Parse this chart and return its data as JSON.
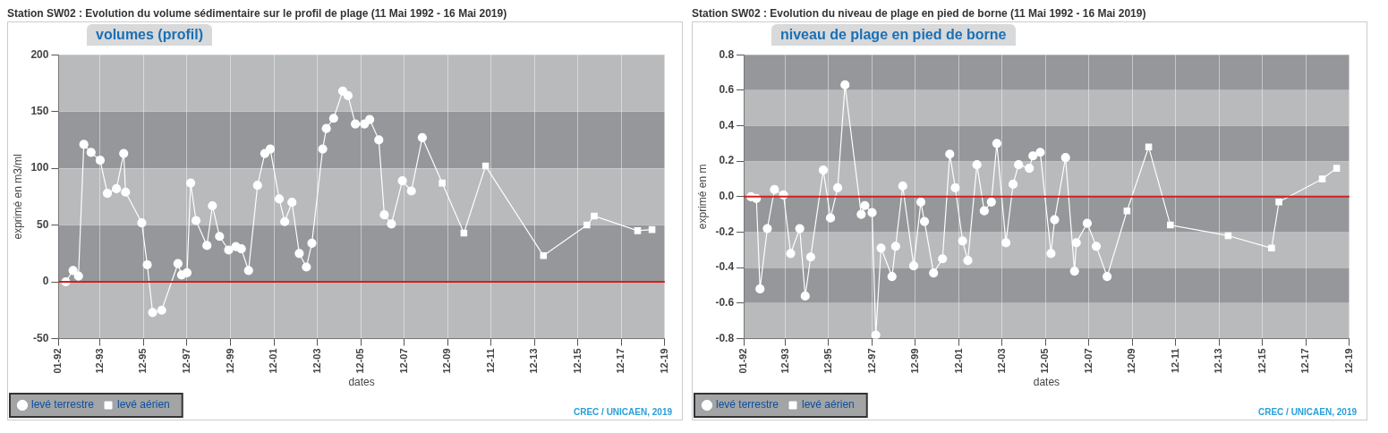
{
  "chart_data": [
    {
      "type": "line",
      "title": "Station SW02 : Evolution du volume sédimentaire sur le profil de plage (11 Mai 1992 - 16 Mai 2019)",
      "subtitle": "volumes (profil)",
      "xlabel": "dates",
      "ylabel": "exprimé en m3/ml",
      "annotations": [
        "CREC / UNICAEN, 2019"
      ],
      "xlim": [
        "1992-01",
        "2019-12"
      ],
      "xticks": [
        {
          "value": "1992-01",
          "label": "01-92"
        },
        {
          "value": "1993-12",
          "label": "12-93"
        },
        {
          "value": "1995-12",
          "label": "12-95"
        },
        {
          "value": "1997-12",
          "label": "12-97"
        },
        {
          "value": "1999-12",
          "label": "12-99"
        },
        {
          "value": "2001-12",
          "label": "12-01"
        },
        {
          "value": "2003-12",
          "label": "12-03"
        },
        {
          "value": "2005-12",
          "label": "12-05"
        },
        {
          "value": "2007-12",
          "label": "12-07"
        },
        {
          "value": "2009-12",
          "label": "12-09"
        },
        {
          "value": "2011-12",
          "label": "12-11"
        },
        {
          "value": "2013-12",
          "label": "12-13"
        },
        {
          "value": "2015-12",
          "label": "12-15"
        },
        {
          "value": "2017-12",
          "label": "12-17"
        },
        {
          "value": "2019-12",
          "label": "12-19"
        }
      ],
      "ylim": [
        -50,
        200
      ],
      "yticks": [
        -50,
        0,
        50,
        100,
        150,
        200
      ],
      "grid": true,
      "legend": "bottom left",
      "line_style": "solid",
      "ref_lines": [
        {
          "axis": "y",
          "value": 0,
          "color": "#d42020"
        }
      ],
      "series": [
        {
          "name": "levé terrestre",
          "color": "#ffffff",
          "marker": "circle",
          "x": [
            "1992-05",
            "1992-09",
            "1992-12",
            "1993-03",
            "1993-07",
            "1993-12",
            "1994-04",
            "1994-09",
            "1995-01",
            "1995-02",
            "1995-11",
            "1996-02",
            "1996-05",
            "1996-10",
            "1997-07",
            "1997-09",
            "1997-12",
            "1998-02",
            "1998-05",
            "1998-11",
            "1999-02",
            "1999-06",
            "1999-11",
            "2000-03",
            "2000-06",
            "2000-10",
            "2001-03",
            "2001-07",
            "2001-10",
            "2002-03",
            "2002-06",
            "2002-10",
            "2003-02",
            "2003-06",
            "2003-09",
            "2004-03",
            "2004-05",
            "2004-09",
            "2005-02",
            "2005-05",
            "2005-09",
            "2006-02",
            "2006-05",
            "2006-10",
            "2007-01",
            "2007-05",
            "2007-11",
            "2008-04",
            "2008-10"
          ],
          "values": [
            0,
            10,
            5,
            121,
            114,
            107,
            78,
            82,
            113,
            79,
            52,
            15,
            -27,
            -25,
            16,
            6,
            8,
            87,
            54,
            32,
            67,
            40,
            28,
            31,
            29,
            10,
            85,
            113,
            117,
            73,
            53,
            70,
            25,
            13,
            34,
            117,
            135,
            144,
            168,
            164,
            139,
            139,
            143,
            125,
            59,
            51,
            89,
            80,
            127
          ]
        },
        {
          "name": "levé aérien",
          "color": "#ffffff",
          "marker": "square",
          "x": [
            "2009-09",
            "2010-09",
            "2011-09",
            "2014-05",
            "2016-05",
            "2016-09",
            "2018-09",
            "2019-05"
          ],
          "values": [
            87,
            43,
            102,
            23,
            50,
            58,
            45,
            46
          ]
        },
        {
          "color": "#ffffff",
          "marker": "none",
          "x": [
            "2008-10",
            "2009-09"
          ],
          "values": [
            127,
            87
          ]
        }
      ]
    },
    {
      "type": "line",
      "title": "Station SW02 : Evolution du niveau de plage en pied de borne (11 Mai 1992 - 16 Mai 2019)",
      "subtitle": "niveau de plage en pied de borne",
      "xlabel": "dates",
      "ylabel": "exprimé en m",
      "annotations": [
        "CREC / UNICAEN, 2019"
      ],
      "xlim": [
        "1992-01",
        "2019-12"
      ],
      "xticks": [
        {
          "value": "1992-01",
          "label": "01-92"
        },
        {
          "value": "1993-12",
          "label": "12-93"
        },
        {
          "value": "1995-12",
          "label": "12-95"
        },
        {
          "value": "1997-12",
          "label": "12-97"
        },
        {
          "value": "1999-12",
          "label": "12-99"
        },
        {
          "value": "2001-12",
          "label": "12-01"
        },
        {
          "value": "2003-12",
          "label": "12-03"
        },
        {
          "value": "2005-12",
          "label": "12-05"
        },
        {
          "value": "2007-12",
          "label": "12-07"
        },
        {
          "value": "2009-12",
          "label": "12-09"
        },
        {
          "value": "2011-12",
          "label": "12-11"
        },
        {
          "value": "2013-12",
          "label": "12-13"
        },
        {
          "value": "2015-12",
          "label": "12-15"
        },
        {
          "value": "2017-12",
          "label": "12-17"
        },
        {
          "value": "2019-12",
          "label": "12-19"
        }
      ],
      "ylim": [
        -0.8,
        0.8
      ],
      "yticks": [
        -0.8,
        -0.6,
        -0.4,
        -0.2,
        {
          "value": 0,
          "label": "0.0"
        },
        0.2,
        0.4,
        0.6,
        0.8
      ],
      "grid": true,
      "legend": "bottom left",
      "line_style": "solid",
      "ref_lines": [
        {
          "axis": "y",
          "value": 0,
          "color": "#d42020"
        }
      ],
      "series": [
        {
          "name": "levé terrestre",
          "color": "#ffffff",
          "marker": "circle",
          "x": [
            "1992-05",
            "1992-08",
            "1992-10",
            "1993-02",
            "1993-06",
            "1993-11",
            "1994-03",
            "1994-08",
            "1994-11",
            "1995-02",
            "1995-09",
            "1996-01",
            "1996-05",
            "1996-09",
            "1997-06",
            "1997-08",
            "1997-12",
            "1998-02",
            "1998-05",
            "1998-11",
            "1999-01",
            "1999-05",
            "1999-11",
            "2000-03",
            "2000-05",
            "2000-10",
            "2001-03",
            "2001-07",
            "2001-10",
            "2002-02",
            "2002-05",
            "2002-10",
            "2003-02",
            "2003-06",
            "2003-09",
            "2004-02",
            "2004-06",
            "2004-09",
            "2005-03",
            "2005-05",
            "2005-09",
            "2006-03",
            "2006-05",
            "2006-11",
            "2007-04",
            "2007-05",
            "2007-11",
            "2008-04",
            "2008-10"
          ],
          "values": [
            0,
            -0.01,
            -0.52,
            -0.18,
            0.04,
            0.01,
            -0.32,
            -0.18,
            -0.56,
            -0.34,
            0.15,
            -0.12,
            0.05,
            0.63,
            -0.1,
            -0.05,
            -0.09,
            -0.78,
            -0.29,
            -0.45,
            -0.28,
            0.06,
            -0.39,
            -0.03,
            -0.14,
            -0.43,
            -0.35,
            0.24,
            0.05,
            -0.25,
            -0.36,
            0.18,
            -0.08,
            -0.03,
            0.3,
            -0.26,
            0.07,
            0.18,
            0.16,
            0.23,
            0.25,
            -0.32,
            -0.13,
            0.22,
            -0.42,
            -0.26,
            -0.15,
            -0.28,
            -0.45
          ]
        },
        {
          "name": "levé aérien",
          "color": "#ffffff",
          "marker": "square",
          "x": [
            "2009-09",
            "2010-09",
            "2011-09",
            "2014-05",
            "2016-05",
            "2016-09",
            "2018-09",
            "2019-05"
          ],
          "values": [
            -0.08,
            0.28,
            -0.16,
            -0.22,
            -0.29,
            -0.03,
            0.1,
            0.16
          ]
        },
        {
          "color": "#ffffff",
          "marker": "none",
          "x": [
            "2008-10",
            "2009-09"
          ],
          "values": [
            -0.45,
            -0.08
          ]
        }
      ]
    }
  ]
}
